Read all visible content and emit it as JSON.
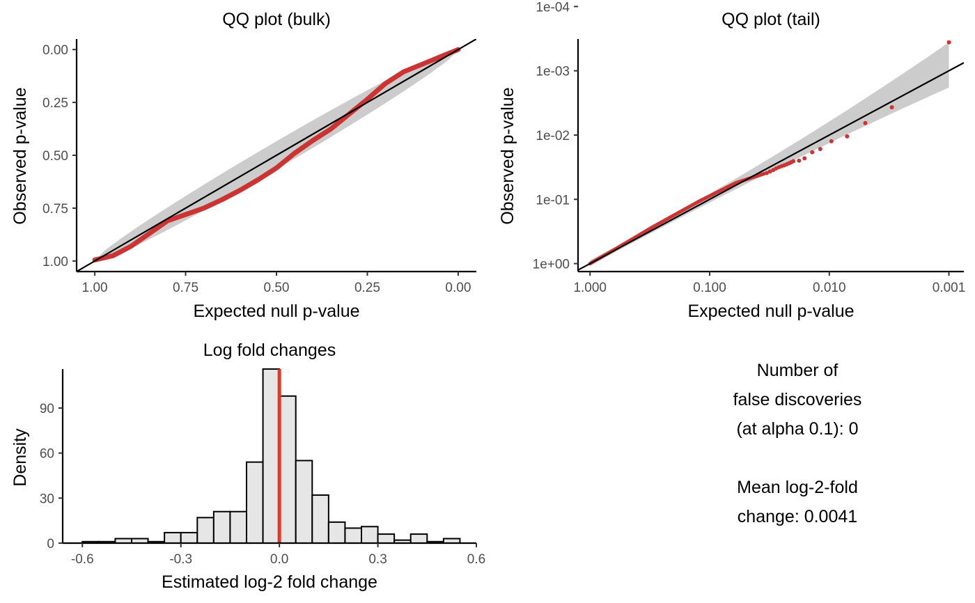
{
  "chart_data": [
    {
      "type": "scatter",
      "title": "QQ plot (bulk)",
      "xlabel": "Expected null p-value",
      "ylabel": "Observed p-value",
      "x_reversed": true,
      "y_reversed": true,
      "xlim": [
        1.05,
        -0.05
      ],
      "ylim": [
        1.05,
        -0.05
      ],
      "xticks": [
        1.0,
        0.75,
        0.5,
        0.25,
        0.0
      ],
      "xtick_labels": [
        "1.00",
        "0.75",
        "0.50",
        "0.25",
        "0.00"
      ],
      "yticks": [
        0.0,
        0.25,
        0.5,
        0.75,
        1.0
      ],
      "ytick_labels": [
        "0.00",
        "0.25",
        "0.50",
        "0.75",
        "1.00"
      ],
      "reference_line": "y = x",
      "band_color": "#cccccc",
      "point_color": "#cc3333",
      "line_color": "#000000",
      "series": [
        {
          "x": [
            1.0,
            0.95,
            0.9,
            0.85,
            0.8,
            0.75,
            0.7,
            0.65,
            0.6,
            0.55,
            0.5,
            0.45,
            0.4,
            0.35,
            0.3,
            0.25,
            0.2,
            0.15,
            0.1,
            0.05,
            0.0
          ],
          "y": [
            0.995,
            0.975,
            0.93,
            0.87,
            0.81,
            0.78,
            0.75,
            0.71,
            0.665,
            0.615,
            0.56,
            0.49,
            0.43,
            0.375,
            0.305,
            0.235,
            0.16,
            0.105,
            0.07,
            0.035,
            0.0
          ]
        }
      ]
    },
    {
      "type": "scatter",
      "title": "QQ plot (tail)",
      "xlabel": "Expected null p-value",
      "ylabel": "Observed p-value",
      "x_scale": "log10-reversed",
      "y_scale": "log10-reversed",
      "xlim": [
        1.26,
        0.00075
      ],
      "ylim": [
        1.33,
        0.00032
      ],
      "xticks": [
        1.0,
        0.1,
        0.01,
        0.001
      ],
      "xtick_labels": [
        "1.000",
        "0.100",
        "0.010",
        "0.001"
      ],
      "yticks": [
        1.0,
        0.1,
        0.01,
        0.001,
        0.0001
      ],
      "ytick_labels": [
        "1e+00",
        "1e-01",
        "1e-02",
        "1e-03",
        "1e-04"
      ],
      "reference_line": "y = x",
      "band_color": "#cccccc",
      "point_color": "#cc3333",
      "line_color": "#000000",
      "series": [
        {
          "x": [
            0.0333,
            0.0313,
            0.0294,
            0.0278,
            0.0263,
            0.025,
            0.0238,
            0.0227,
            0.0217,
            0.0208,
            0.02,
            0.0179,
            0.0161,
            0.0139,
            0.0119,
            0.0096,
            0.0071,
            0.005,
            0.003,
            0.001
          ],
          "y": [
            0.039,
            0.037,
            0.035,
            0.033,
            0.0315,
            0.0305,
            0.0295,
            0.0285,
            0.0275,
            0.0265,
            0.0255,
            0.025,
            0.023,
            0.0185,
            0.0165,
            0.0125,
            0.0105,
            0.0065,
            0.0037,
            0.00036
          ]
        }
      ]
    },
    {
      "type": "bar",
      "title": "Log fold changes",
      "xlabel": "Estimated log-2 fold change",
      "ylabel": "Density",
      "xlim": [
        -0.66,
        0.6
      ],
      "ylim": [
        0,
        116
      ],
      "xticks": [
        -0.6,
        -0.3,
        0.0,
        0.3,
        0.6
      ],
      "xtick_labels": [
        "-0.6",
        "-0.3",
        "0.0",
        "0.3",
        "0.6"
      ],
      "yticks": [
        0,
        30,
        60,
        90
      ],
      "ytick_labels": [
        "0",
        "30",
        "60",
        "90"
      ],
      "bin_width": 0.05,
      "bin_starts": [
        -0.6,
        -0.55,
        -0.5,
        -0.45,
        -0.4,
        -0.35,
        -0.3,
        -0.25,
        -0.2,
        -0.15,
        -0.1,
        -0.05,
        0.0,
        0.05,
        0.1,
        0.15,
        0.2,
        0.25,
        0.3,
        0.35,
        0.4,
        0.45,
        0.5
      ],
      "values": [
        1,
        1,
        3,
        3,
        1,
        7,
        7,
        17,
        21,
        21,
        54,
        116,
        98,
        55,
        32,
        14,
        10,
        11,
        6,
        2,
        6,
        1,
        3
      ],
      "bar_fill": "#e6e6e6",
      "bar_stroke": "#000000",
      "vline_x": 0.0,
      "vline_color": "#ee3322"
    }
  ],
  "summary": {
    "line1": "Number of",
    "line2": "false discoveries",
    "line3": "(at alpha 0.1): 0",
    "line4": "Mean log-2-fold",
    "line5": "change: 0.0041"
  }
}
